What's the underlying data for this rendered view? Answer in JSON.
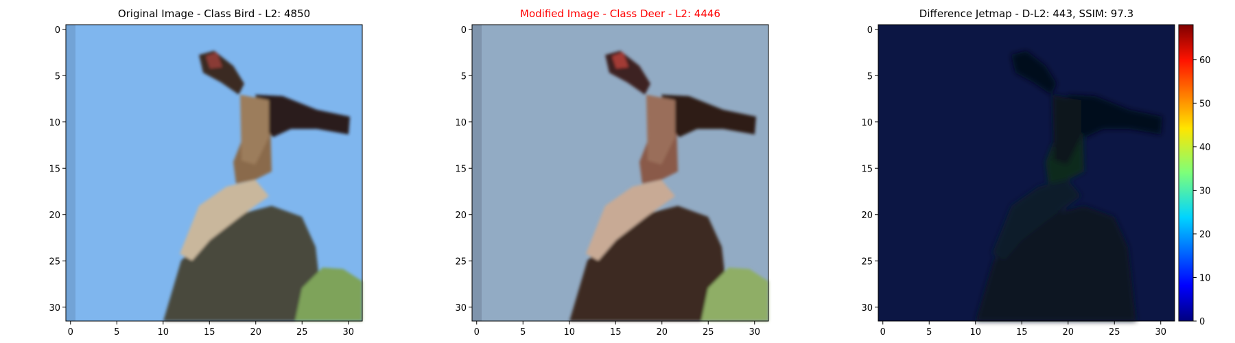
{
  "chart_data": [
    {
      "type": "image",
      "title": "Original Image - Class Bird - L2: 4850",
      "title_color": "#000000",
      "xlim": [
        -0.5,
        31.5
      ],
      "ylim": [
        31.5,
        -0.5
      ],
      "xticks": [
        0,
        5,
        10,
        15,
        20,
        25,
        30
      ],
      "yticks": [
        0,
        5,
        10,
        15,
        20,
        25,
        30
      ],
      "palette": {
        "sky": "#7fb6ee",
        "bird_dark": "#3a2a24",
        "bird_light": "#c9b79c",
        "perch": "#4a4a3c",
        "green": "#7ea35a"
      }
    },
    {
      "type": "image",
      "title": "Modified Image - Class Deer - L2: 4446",
      "title_color": "#ff0000",
      "xlim": [
        -0.5,
        31.5
      ],
      "ylim": [
        31.5,
        -0.5
      ],
      "xticks": [
        0,
        5,
        10,
        15,
        20,
        25,
        30
      ],
      "yticks": [
        0,
        5,
        10,
        15,
        20,
        25,
        30
      ],
      "palette": {
        "sky": "#92abc4",
        "bird_dark": "#3e2420",
        "bird_light": "#c8aa95",
        "perch": "#3e2a22",
        "green": "#8fae66"
      }
    },
    {
      "type": "heatmap",
      "title": "Difference Jetmap - D-L2: 443, SSIM: 97.3",
      "title_color": "#000000",
      "xlim": [
        -0.5,
        31.5
      ],
      "ylim": [
        31.5,
        -0.5
      ],
      "xticks": [
        0,
        5,
        10,
        15,
        20,
        25,
        30
      ],
      "yticks": [
        0,
        5,
        10,
        15,
        20,
        25,
        30
      ],
      "colormap": "jet",
      "colorbar": {
        "min": 0,
        "max": 68,
        "ticks": [
          0,
          10,
          20,
          30,
          40,
          50,
          60
        ]
      },
      "palette": {
        "background": "#0c1644",
        "shadow": "#06101e",
        "shadow_green": "#0d2a1e"
      }
    }
  ]
}
